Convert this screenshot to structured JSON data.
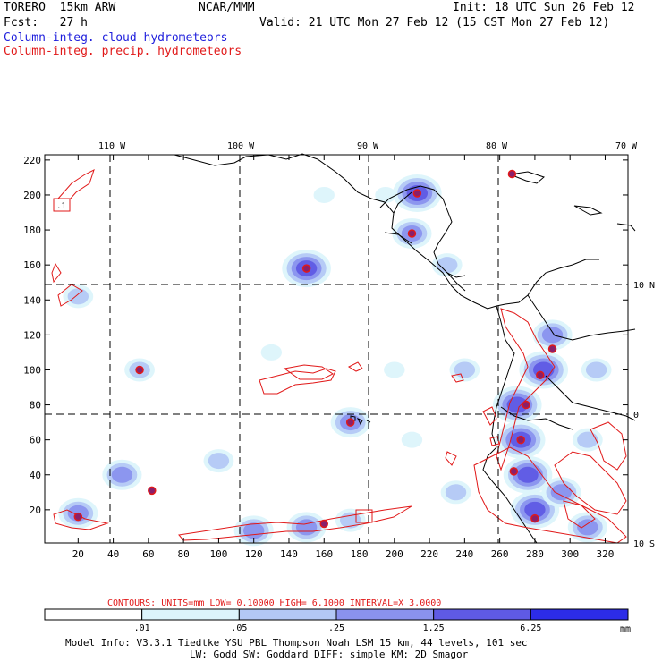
{
  "header": {
    "model": "TORERO  15km ARW",
    "center": "NCAR/MMM",
    "init": "Init: 18 UTC Sun 26 Feb 12",
    "fcst": "Fcst:   27 h",
    "valid": "Valid: 21 UTC Mon 27 Feb 12 (15 CST Mon 27 Feb 12)",
    "field_cloud": "Column-integ. cloud hydrometeors",
    "field_precip": "Column-integ. precip. hydrometeors"
  },
  "chart_data": {
    "type": "heatmap",
    "title": "Column-integrated cloud (shaded) and precipitation (contoured) hydrometeors",
    "top_lon_labels": [
      "110 W",
      "100 W",
      "90 W",
      "80 W",
      "70 W"
    ],
    "right_lat_labels": [
      "10 N",
      "0",
      "10 S"
    ],
    "x_ticks": [
      20,
      40,
      60,
      80,
      100,
      120,
      140,
      160,
      180,
      200,
      220,
      240,
      260,
      280,
      300,
      320
    ],
    "y_ticks": [
      20,
      40,
      60,
      80,
      100,
      120,
      140,
      160,
      180,
      200,
      220
    ],
    "xlim": [
      1,
      333
    ],
    "ylim": [
      1,
      223
    ],
    "contour_info": {
      "label": "CONTOURS:  UNITS=mm  LOW= 0.10000      HIGH=  6.1000      INTERVAL=X  3.0000",
      "units": "mm",
      "low": 0.1,
      "high": 6.1,
      "interval_factor": 3.0
    },
    "colorbar": {
      "bounds": [
        ".01",
        ".05",
        ".25",
        "1.25",
        "6.25"
      ],
      "units": "mm",
      "colors": [
        "#ffffff",
        "#dcf4fb",
        "#b3c8f5",
        "#8a92ee",
        "#5f5ae4",
        "#2c2ce8"
      ]
    },
    "cloud_cells": [
      {
        "x": 175,
        "y": 70,
        "v": 3
      },
      {
        "x": 276,
        "y": 40,
        "v": 4
      },
      {
        "x": 272,
        "y": 60,
        "v": 4
      },
      {
        "x": 270,
        "y": 80,
        "v": 4
      },
      {
        "x": 285,
        "y": 100,
        "v": 4
      },
      {
        "x": 290,
        "y": 120,
        "v": 3
      },
      {
        "x": 280,
        "y": 20,
        "v": 4
      },
      {
        "x": 295,
        "y": 30,
        "v": 3
      },
      {
        "x": 310,
        "y": 10,
        "v": 3
      },
      {
        "x": 20,
        "y": 18,
        "v": 3
      },
      {
        "x": 45,
        "y": 40,
        "v": 3
      },
      {
        "x": 100,
        "y": 48,
        "v": 2
      },
      {
        "x": 120,
        "y": 8,
        "v": 3
      },
      {
        "x": 150,
        "y": 10,
        "v": 3
      },
      {
        "x": 175,
        "y": 14,
        "v": 2
      },
      {
        "x": 55,
        "y": 100,
        "v": 2
      },
      {
        "x": 150,
        "y": 158,
        "v": 4
      },
      {
        "x": 213,
        "y": 201,
        "v": 4
      },
      {
        "x": 210,
        "y": 178,
        "v": 3
      },
      {
        "x": 230,
        "y": 160,
        "v": 2
      },
      {
        "x": 240,
        "y": 100,
        "v": 2
      },
      {
        "x": 20,
        "y": 142,
        "v": 2
      },
      {
        "x": 195,
        "y": 200,
        "v": 1
      },
      {
        "x": 160,
        "y": 200,
        "v": 1
      },
      {
        "x": 310,
        "y": 60,
        "v": 2
      },
      {
        "x": 315,
        "y": 100,
        "v": 2
      },
      {
        "x": 200,
        "y": 100,
        "v": 1
      },
      {
        "x": 130,
        "y": 110,
        "v": 1
      },
      {
        "x": 210,
        "y": 60,
        "v": 1
      },
      {
        "x": 235,
        "y": 30,
        "v": 2
      }
    ],
    "precip_markers": [
      {
        "x": 175,
        "y": 70
      },
      {
        "x": 150,
        "y": 158
      },
      {
        "x": 213,
        "y": 201
      },
      {
        "x": 210,
        "y": 178
      },
      {
        "x": 290,
        "y": 112
      },
      {
        "x": 283,
        "y": 97
      },
      {
        "x": 275,
        "y": 80
      },
      {
        "x": 272,
        "y": 60
      },
      {
        "x": 268,
        "y": 42
      },
      {
        "x": 20,
        "y": 16
      },
      {
        "x": 55,
        "y": 100
      },
      {
        "x": 62,
        "y": 31
      },
      {
        "x": 160,
        "y": 12
      },
      {
        "x": 267,
        "y": 212
      },
      {
        "x": 280,
        "y": 15
      }
    ]
  },
  "footer": {
    "model_info": "Model Info: V3.3.1   Tiedtke YSU PBL  Thompson    Noah LSM  15 km,   44 levels,  101 sec",
    "model_info2": "LW: Godd SW: Goddard DIFF: simple KM: 2D Smagor"
  }
}
